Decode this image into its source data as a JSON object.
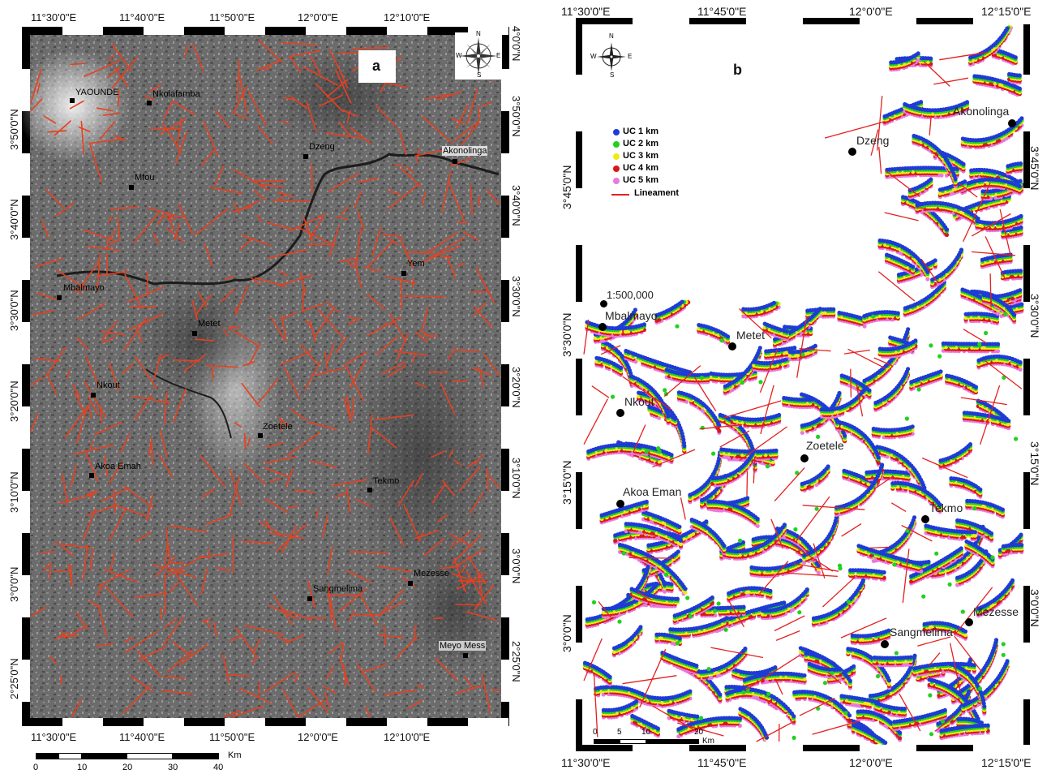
{
  "panel_a": {
    "letter": "a",
    "top_lon": [
      "11°30'0\"E",
      "11°40'0\"E",
      "11°50'0\"E",
      "12°0'0\"E",
      "12°10'0\"E"
    ],
    "bottom_lon": [
      "11°30'0\"E",
      "11°40'0\"E",
      "11°50'0\"E",
      "12°0'0\"E",
      "12°10'0\"E"
    ],
    "left_lat": [
      "3°50'0\"N",
      "3°40'0\"N",
      "3°30'0\"N",
      "3°20'0\"N",
      "3°10'0\"N",
      "3°0'0\"N",
      "2°25'0\"N"
    ],
    "right_lat": [
      "4°0'0\"N",
      "3°50'0\"N",
      "3°40'0\"N",
      "3°30'0\"N",
      "3°20'0\"N",
      "3°10'0\"N",
      "3°0'0\"N",
      "2°25'0\"N"
    ],
    "places": [
      "YAOUNDE",
      "Nkolafamba",
      "Mfou",
      "Dzeng",
      "Akonolinga",
      "Yem",
      "Mbalmayo",
      "Metet",
      "Nkout",
      "Zoetele",
      "Akoa Emah",
      "Tekmo",
      "Mezesse",
      "Sangmelima",
      "Meyo Mess"
    ],
    "scale": {
      "ticks": [
        "0",
        "10",
        "20",
        "30",
        "40"
      ],
      "unit": "Km"
    },
    "north": {
      "n": "N",
      "s": "S",
      "e": "E",
      "w": "W"
    }
  },
  "panel_b": {
    "letter": "b",
    "top_lon": [
      "11°30'0\"E",
      "11°45'0\"E",
      "12°0'0\"E",
      "12°15'0\"E"
    ],
    "bottom_lon": [
      "11°30'0\"E",
      "11°45'0\"E",
      "12°0'0\"E",
      "12°15'0\"E"
    ],
    "left_lat": [
      "3°45'0\"N",
      "3°30'0\"N",
      "3°15'0\"N",
      "3°0'0\"N"
    ],
    "right_lat": [
      "3°45'0\"N",
      "3°30'0\"N",
      "3°15'0\"N",
      "3°0'0\"N"
    ],
    "places": [
      "Akonolinga",
      "Dzeng",
      "Mbalmayo",
      "Metet",
      "Nkout",
      "Zoetele",
      "Akoa Eman",
      "Tekmo",
      "Mezesse",
      "Sangmelima"
    ],
    "scale_text": "1:500,000",
    "scale": {
      "ticks": [
        "0",
        "5",
        "10",
        "20"
      ],
      "unit": "Km"
    },
    "legend": [
      {
        "label": "UC 1 km",
        "color": "#1f3bd6"
      },
      {
        "label": "UC 2 km",
        "color": "#22d11f"
      },
      {
        "label": "UC 3 km",
        "color": "#ecec16"
      },
      {
        "label": "UC 4 km",
        "color": "#d81818"
      },
      {
        "label": "UC 5 km",
        "color": "#e878e0"
      },
      {
        "label": "Lineament",
        "color": "#e42020"
      }
    ],
    "north": {
      "n": "N",
      "s": "S",
      "e": "E",
      "w": "W"
    }
  }
}
